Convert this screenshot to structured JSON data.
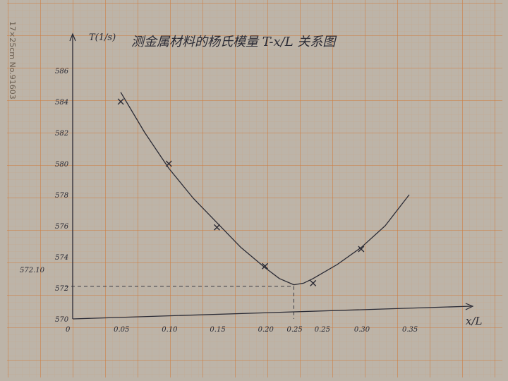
{
  "chart_data": {
    "type": "scatter",
    "title": "测金属材料的杨氏模量 T-x/L 关系图",
    "ylabel": "T(1/s)",
    "xlabel": "x/L",
    "x_ticks": [
      "0",
      "0.05",
      "0.10",
      "0.15",
      "0.20",
      "0.25",
      "0.25",
      "0.30",
      "0.35"
    ],
    "y_ticks": [
      "570",
      "572",
      "574",
      "576",
      "578",
      "580",
      "582",
      "584",
      "586"
    ],
    "min_marker_label": "572.10",
    "xlim": [
      0,
      0.35
    ],
    "ylim": [
      570,
      586
    ],
    "grid": true,
    "series": [
      {
        "x": [
          0.05,
          0.1,
          0.15,
          0.2,
          0.25,
          0.3
        ],
        "y": [
          584.0,
          580.0,
          575.9,
          573.4,
          572.3,
          574.5
        ]
      }
    ],
    "fit_curve": {
      "x": [
        0.05,
        0.075,
        0.1,
        0.125,
        0.15,
        0.175,
        0.2,
        0.215,
        0.23,
        0.24,
        0.25,
        0.275,
        0.3,
        0.325,
        0.35
      ],
      "y": [
        584.6,
        582.0,
        579.7,
        577.8,
        576.2,
        574.6,
        573.3,
        572.6,
        572.2,
        572.3,
        572.6,
        573.5,
        574.6,
        576.0,
        578.0
      ]
    },
    "min_point": {
      "x": 0.23,
      "y": 572.1
    }
  },
  "side_text": "17×25cm  No.91603"
}
